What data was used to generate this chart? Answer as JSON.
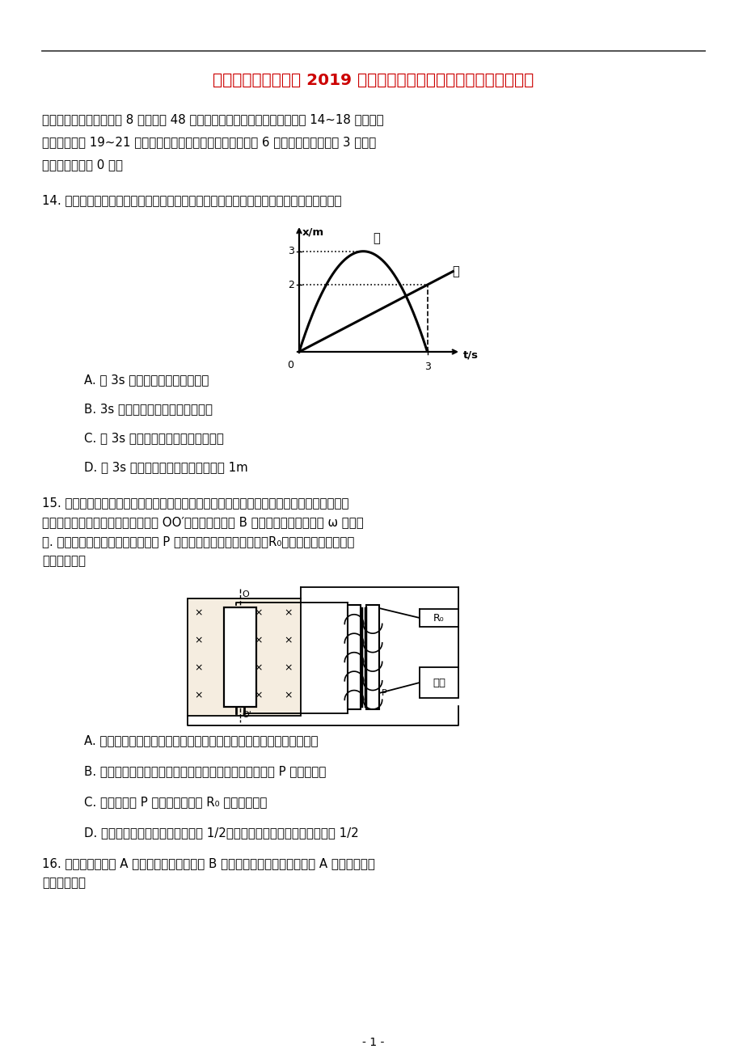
{
  "title": "贵州省部分重点中学 2019 届高考物理上学期教学质量评测卷（四）",
  "title_color": "#cc0000",
  "bg_color": "#ffffff",
  "text_color": "#000000",
  "sh_lines": [
    "二、选择题：（本大题共 8 小题，共 48 分。在每小题给出的四个选项中，第 14~18 题只有一",
    "项符合题意第 19~21 题有多个选项符合题意。全部选对的得 6 分，选对但不全的得 3 分，有",
    "选错或不选的得 0 分）"
  ],
  "q14_stem": "14. 甲、乙两物体从同一地点出发沿同一直线运动，它们的位移一时间图象如图所示，则在",
  "q14_opts": [
    "A. 前 3s 内甲、乙的平均速度相等",
    "B. 3s 末时甲、乙两物体的速度相等",
    "C. 前 3s 内甲、乙的运动方向始终相同",
    "D. 前 3s 内甲、乙两物体的最大距离为 1m"
  ],
  "q15_lines": [
    "15. 某住宅小区的应急供电系统，由交流发电机和副线圈匝数可调的理想降压变压器组成，发",
    "电机中矩形线圈电阻不计，它可绕轴 OO′在磁感应强度为 B 的匀强磁场中以角速度 ω 匀速转",
    "动. 降压变压器副线圈上的滑动触头 P 上下移动时可改变输出电压，R₀表示输电线电阻。下列",
    "判断正确的是"
  ],
  "q15_opts": [
    "A. 若发电机线圈某时刻处于图示位置，变压器原线圈的电流瞬时值最大",
    "B. 当用户数目增多时，为使用户电压保持不变，滑动触头 P 应向下滑动",
    "C. 若滑动触头 P 向下滑动，流过 R₀ 的电流将减小",
    "D. 若发电机线圈的转速减为原来的 1/2，用户获得的功率也将减为原来的 1/2"
  ],
  "q16_lines": [
    "16. 如图所示，滑块 A 沿表面粗糙的固定斜面 B 加速下滑。下列做法中，能使 A 下滑时加速度",
    "一定减小的是"
  ],
  "page_num": "- 1 -"
}
